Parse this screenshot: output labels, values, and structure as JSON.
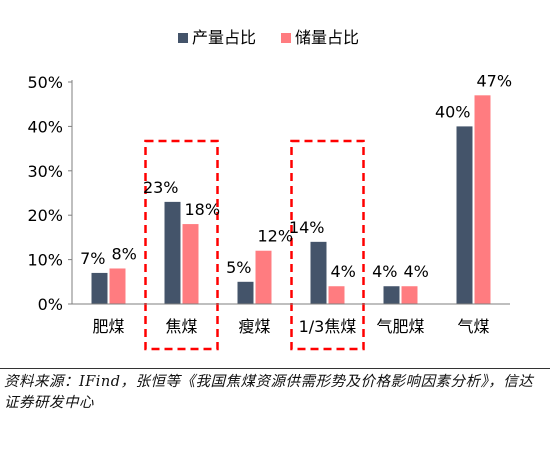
{
  "chart_data": {
    "type": "bar",
    "categories": [
      "肥煤",
      "焦煤",
      "瘦煤",
      "1/3焦煤",
      "气肥煤",
      "气煤"
    ],
    "series": [
      {
        "name": "产量占比",
        "values": [
          7,
          23,
          5,
          14,
          4,
          40
        ],
        "labels": [
          "7%",
          "23%",
          "5%",
          "14%",
          "4%",
          "40%"
        ],
        "color": "#44546A"
      },
      {
        "name": "储量占比",
        "values": [
          8,
          18,
          12,
          4,
          4,
          47
        ],
        "labels": [
          "8%",
          "18%",
          "12%",
          "4%",
          "4%",
          "47%"
        ],
        "color": "#FF7C80"
      }
    ],
    "ylim": [
      0,
      50
    ],
    "yticks": [
      "0%",
      "10%",
      "20%",
      "30%",
      "40%",
      "50%"
    ],
    "legend_position": "top",
    "grid": false,
    "highlighted_categories": [
      "焦煤",
      "1/3焦煤"
    ],
    "highlight_color": "#FF0000"
  },
  "source": "资料来源：IFind，张恒等《我国焦煤资源供需形势及价格影响因素分析》，信达证券研发中心"
}
